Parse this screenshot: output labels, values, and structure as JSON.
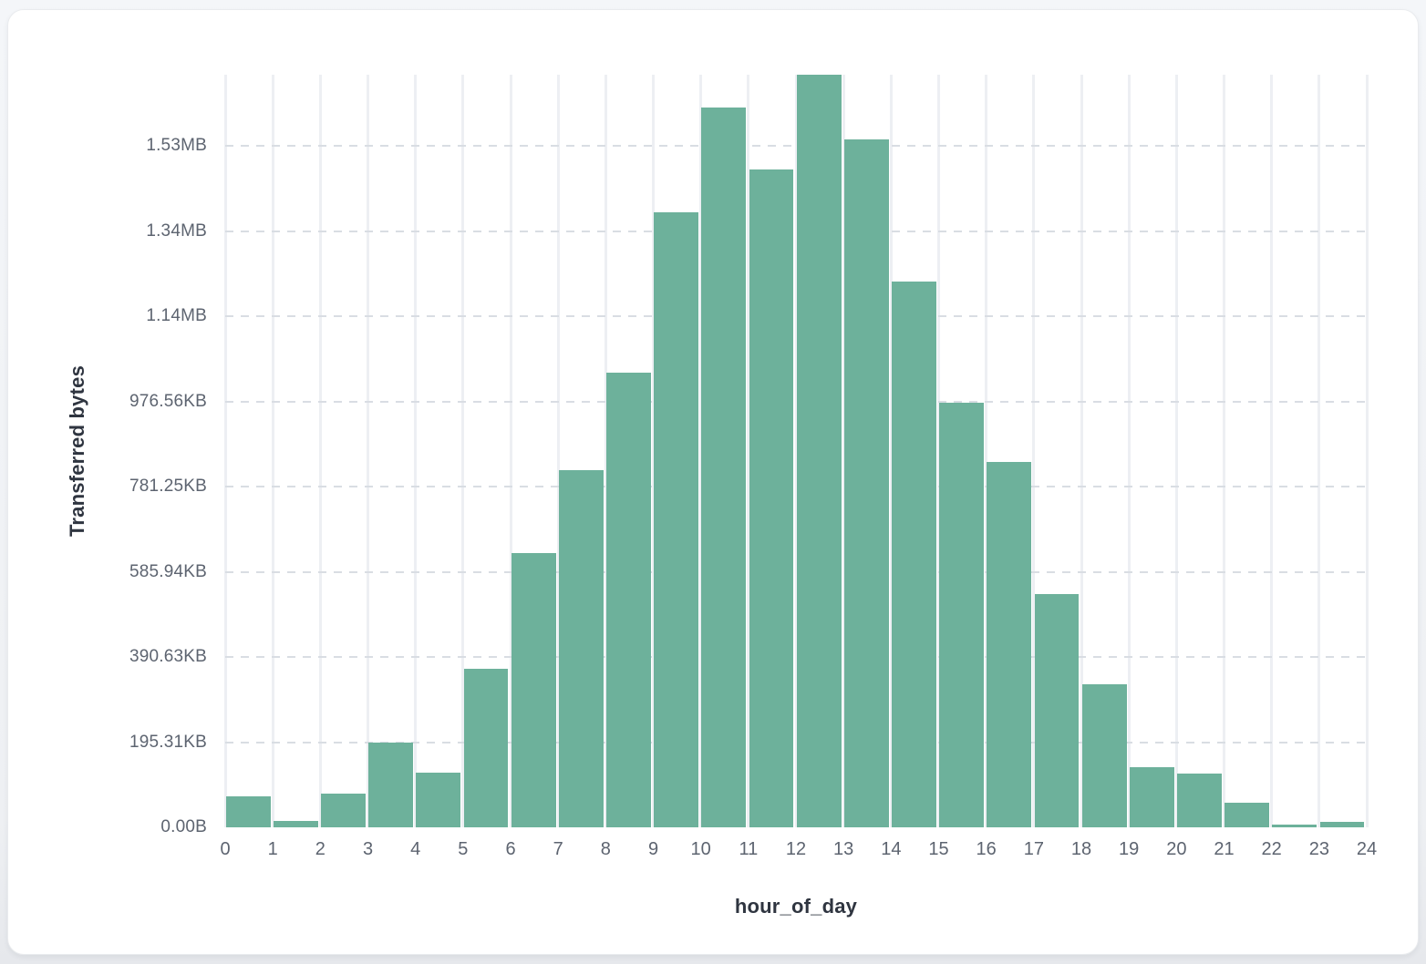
{
  "chart_data": {
    "type": "bar",
    "subtype": "histogram",
    "title": "",
    "xlabel": "hour_of_day",
    "ylabel": "Transferred bytes",
    "x_tick_labels": [
      "0",
      "1",
      "2",
      "3",
      "4",
      "5",
      "6",
      "7",
      "8",
      "9",
      "10",
      "11",
      "12",
      "13",
      "14",
      "15",
      "16",
      "17",
      "18",
      "19",
      "20",
      "21",
      "22",
      "23",
      "24"
    ],
    "y_ticks": [
      {
        "label": "0.00B",
        "bytes": 0
      },
      {
        "label": "195.31KB",
        "bytes": 200000
      },
      {
        "label": "390.63KB",
        "bytes": 400000
      },
      {
        "label": "585.94KB",
        "bytes": 600000
      },
      {
        "label": "781.25KB",
        "bytes": 800000
      },
      {
        "label": "976.56KB",
        "bytes": 1000000
      },
      {
        "label": "1.14MB",
        "bytes": 1200000
      },
      {
        "label": "1.34MB",
        "bytes": 1400000
      },
      {
        "label": "1.53MB",
        "bytes": 1600000
      }
    ],
    "x_range": [
      0,
      24
    ],
    "y_range_bytes": [
      0,
      1768000
    ],
    "bin_width_hours": 1,
    "series": [
      {
        "name": "Transferred bytes",
        "bin_start_hours": [
          0,
          1,
          2,
          3,
          4,
          5,
          6,
          7,
          8,
          9,
          10,
          11,
          12,
          13,
          14,
          15,
          16,
          17,
          18,
          19,
          20,
          21,
          22,
          23
        ],
        "values_bytes": [
          73400,
          15600,
          78400,
          198300,
          128200,
          371700,
          643700,
          840000,
          1069100,
          1445100,
          1691400,
          1545100,
          1768000,
          1615800,
          1281100,
          997600,
          858400,
          547300,
          335300,
          141100,
          127000,
          58500,
          6800,
          12600
        ]
      }
    ],
    "legend": false,
    "grid": {
      "vertical": "solid",
      "horizontal": "dashed"
    },
    "colors": {
      "bar": "#6db19b",
      "vertical_gridline": "#edeff3",
      "dashed_gridline": "#d9dde3",
      "tick_text": "#5d6470",
      "axis_title_text": "#2f3540",
      "card_background": "#ffffff",
      "page_background": "#eef0f4"
    }
  }
}
